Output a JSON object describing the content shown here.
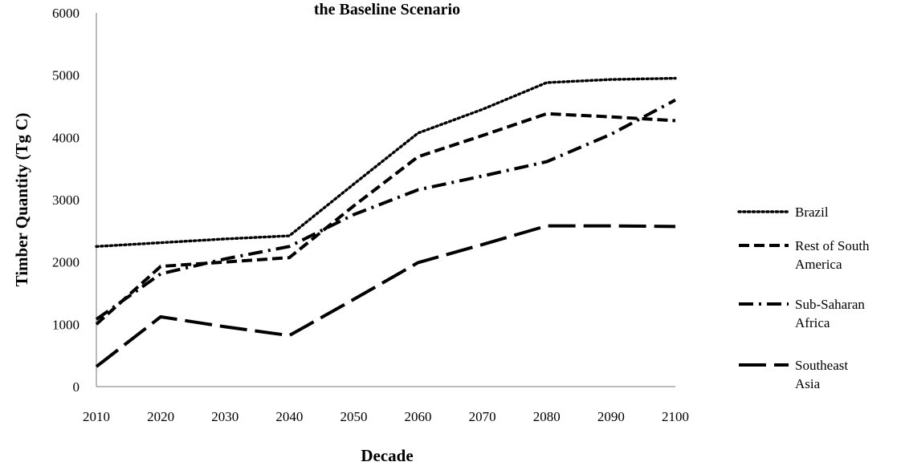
{
  "chart_data": {
    "type": "line",
    "title": "the Baseline Scenario",
    "xlabel": "Decade",
    "ylabel": "Timber Quantity (Tg C)",
    "x": [
      2010,
      2020,
      2030,
      2040,
      2050,
      2060,
      2070,
      2080,
      2090,
      2100
    ],
    "x_ticks": [
      "2010",
      "2020",
      "2030",
      "2040",
      "2050",
      "2060",
      "2070",
      "2080",
      "2090",
      "2100"
    ],
    "ylim": [
      0,
      6000
    ],
    "y_ticks": [
      "0",
      "1000",
      "2000",
      "3000",
      "4000",
      "5000",
      "6000"
    ],
    "grid": false,
    "legend_position": "right",
    "series": [
      {
        "name": "Brazil",
        "legend_lines": [
          "Brazil"
        ],
        "style": "dotted",
        "color": "#000000",
        "values": [
          2250,
          2310,
          2370,
          2420,
          3250,
          4070,
          4450,
          4880,
          4930,
          4950
        ]
      },
      {
        "name": "Rest of South America",
        "legend_lines": [
          "Rest of South",
          "America"
        ],
        "style": "dashed",
        "color": "#000000",
        "values": [
          1000,
          1930,
          2000,
          2070,
          2900,
          3690,
          4030,
          4380,
          4330,
          4270
        ]
      },
      {
        "name": "Sub-Saharan Africa",
        "legend_lines": [
          "Sub-Saharan",
          "Africa"
        ],
        "style": "dash-dot",
        "color": "#000000",
        "values": [
          1080,
          1810,
          2050,
          2250,
          2760,
          3160,
          3380,
          3610,
          4050,
          4600
        ]
      },
      {
        "name": "Southeast Asia",
        "legend_lines": [
          "Southeast",
          "Asia"
        ],
        "style": "long-dash",
        "color": "#000000",
        "values": [
          320,
          1120,
          960,
          820,
          1400,
          1990,
          2280,
          2580,
          2580,
          2570
        ]
      }
    ]
  }
}
